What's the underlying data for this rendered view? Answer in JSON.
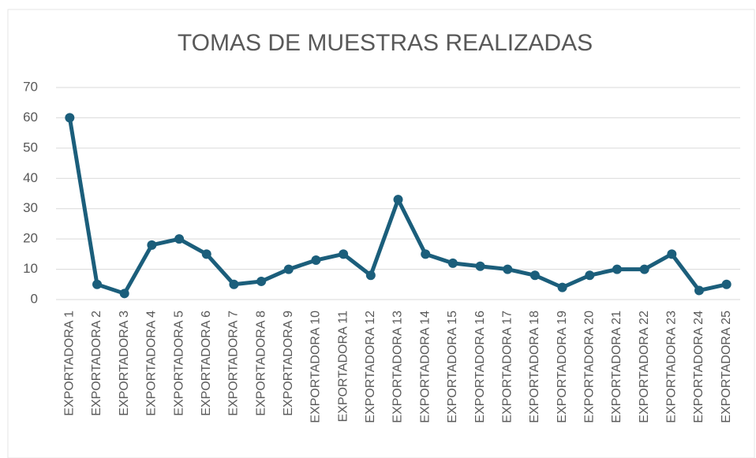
{
  "chart_data": {
    "type": "line",
    "title": "TOMAS DE MUESTRAS REALIZADAS",
    "categories": [
      "EXPORTADORA 1",
      "EXPORTADORA 2",
      "EXPORTADORA 3",
      "EXPORTADORA 4",
      "EXPORTADORA 5",
      "EXPORTADORA 6",
      "EXPORTADORA 7",
      "EXPORTADORA 8",
      "EXPORTADORA 9",
      "EXPORTADORA 10",
      "EXPORTADORA 11",
      "EXPORTADORA 12",
      "EXPORTADORA 13",
      "EXPORTADORA 14",
      "EXPORTADORA 15",
      "EXPORTADORA 16",
      "EXPORTADORA 17",
      "EXPORTADORA 18",
      "EXPORTADORA 19",
      "EXPORTADORA 20",
      "EXPORTADORA 21",
      "EXPORTADORA 22",
      "EXPORTADORA 23",
      "EXPORTADORA 24",
      "EXPORTADORA 25"
    ],
    "values": [
      60,
      5,
      2,
      18,
      20,
      15,
      5,
      6,
      10,
      13,
      15,
      8,
      33,
      15,
      12,
      11,
      10,
      8,
      4,
      8,
      10,
      10,
      15,
      3,
      5
    ],
    "color": "#1b5e7b",
    "ylim": [
      0,
      70
    ],
    "yticks": [
      0,
      10,
      20,
      30,
      40,
      50,
      60,
      70
    ],
    "grid": true
  }
}
